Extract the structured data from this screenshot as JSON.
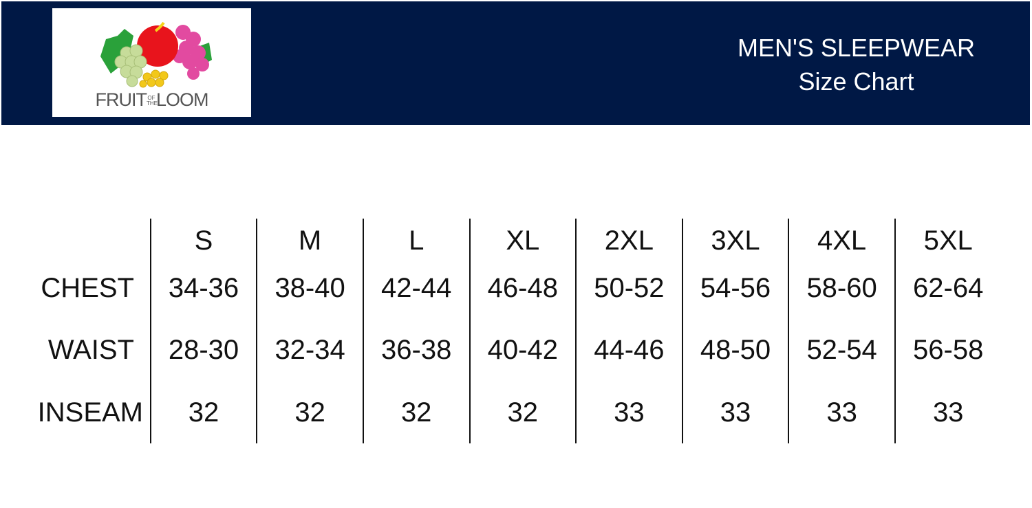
{
  "header": {
    "brand": "FRUIT OF THE LOOM",
    "brand_parts": {
      "left": "FRUIT",
      "mid_top": "OF",
      "mid_bottom": "THE",
      "right": "LOOM"
    },
    "title": "MEN'S SLEEPWEAR",
    "subtitle": "Size Chart",
    "background_color": "#001845"
  },
  "table": {
    "sizes": [
      "S",
      "M",
      "L",
      "XL",
      "2XL",
      "3XL",
      "4XL",
      "5XL"
    ],
    "rows": [
      {
        "label": "CHEST",
        "values": [
          "34-36",
          "38-40",
          "42-44",
          "46-48",
          "50-52",
          "54-56",
          "58-60",
          "62-64"
        ]
      },
      {
        "label": "WAIST",
        "values": [
          "28-30",
          "32-34",
          "36-38",
          "40-42",
          "44-46",
          "48-50",
          "52-54",
          "56-58"
        ]
      },
      {
        "label": "INSEAM",
        "values": [
          "32",
          "32",
          "32",
          "32",
          "33",
          "33",
          "33",
          "33"
        ]
      }
    ]
  }
}
